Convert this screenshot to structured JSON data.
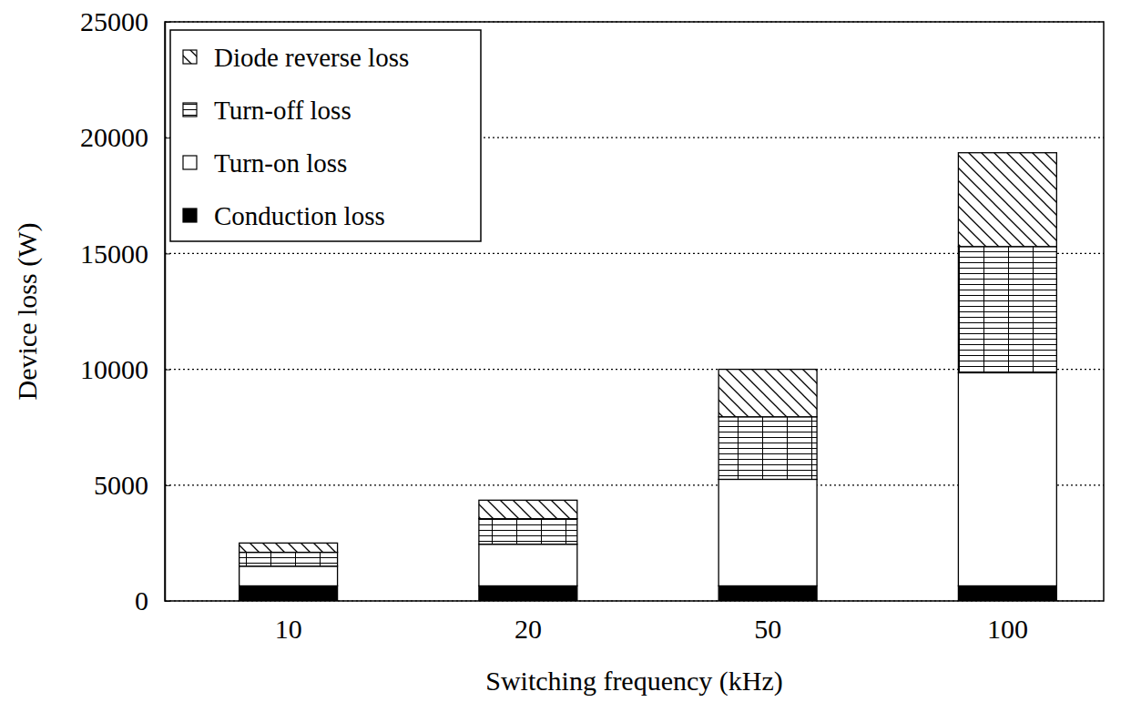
{
  "chart_data": {
    "type": "bar",
    "stacked": true,
    "grid": true,
    "legend": "upper left",
    "xlabel": "Switching frequency (kHz)",
    "ylabel": "Device loss (W)",
    "categories": [
      "10",
      "20",
      "50",
      "100"
    ],
    "series": [
      {
        "name": "Conduction loss",
        "color": "#000000",
        "values": [
          650,
          650,
          650,
          650
        ]
      },
      {
        "name": "Turn-on loss",
        "color": "#ffffff",
        "values": [
          850,
          1800,
          4600,
          9200
        ]
      },
      {
        "name": "Turn-off loss",
        "color": "#ffffff",
        "values": [
          600,
          1100,
          2700,
          5450
        ]
      },
      {
        "name": "Diode reverse loss",
        "color": "#ffffff",
        "values": [
          400,
          800,
          2050,
          4050
        ]
      }
    ],
    "ylim": [
      0,
      25000
    ],
    "yticks": [
      0,
      5000,
      10000,
      15000,
      20000,
      25000
    ]
  }
}
